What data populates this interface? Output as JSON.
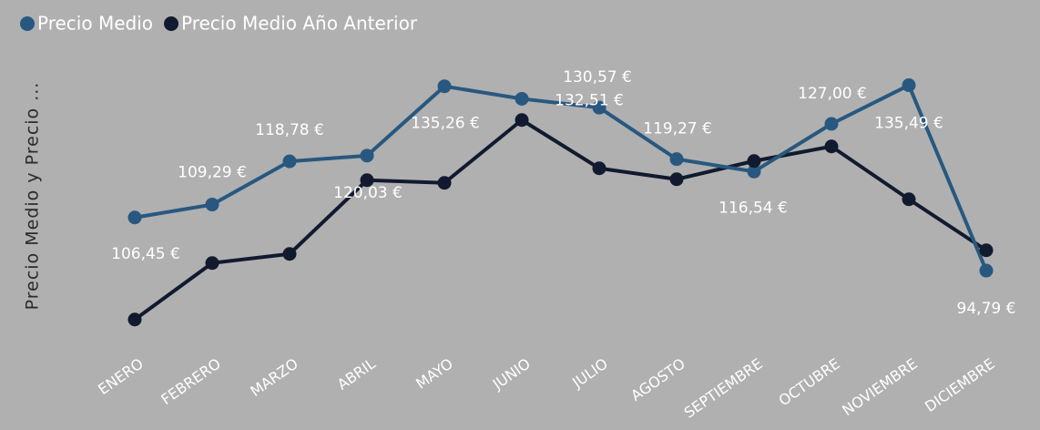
{
  "chart_data": {
    "type": "line",
    "y_axis_label": "Precio Medio y Precio ...",
    "categories": [
      "ENERO",
      "FEBRERO",
      "MARZO",
      "ABRIL",
      "MAYO",
      "JUNIO",
      "JULIO",
      "AGOSTO",
      "SEPTIEMBRE",
      "OCTUBRE",
      "NOVIEMBRE",
      "DICIEMBRE"
    ],
    "ylim": [
      80,
      142
    ],
    "legend": "top-left",
    "series": [
      {
        "name": "Precio Medio",
        "color": "#28587f",
        "values": [
          106.45,
          109.29,
          118.78,
          120.03,
          135.26,
          132.51,
          130.57,
          119.27,
          116.54,
          127.0,
          135.49,
          94.79
        ],
        "value_labels": [
          "106,45 €",
          "109,29 €",
          "118,78 €",
          "120,03 €",
          "135,26 €",
          "132,51 €",
          "130,57 €",
          "119,27 €",
          "116,54 €",
          "127,00 €",
          "135,49 €",
          "94,79 €"
        ]
      },
      {
        "name": "Precio Medio Año Anterior",
        "color": "#111a2e",
        "values": [
          84.05,
          96.45,
          98.45,
          114.65,
          114.05,
          127.85,
          117.25,
          114.85,
          118.85,
          122.05,
          110.45,
          99.25
        ]
      }
    ]
  }
}
